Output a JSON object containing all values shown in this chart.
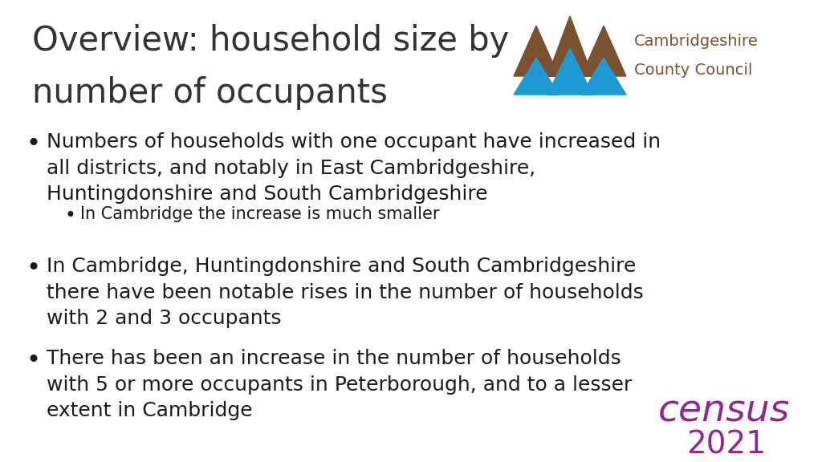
{
  "title_line1": "Overview: household size by",
  "title_line2": "number of occupants",
  "title_fontsize": 30,
  "title_color": "#333333",
  "background_color": "#ffffff",
  "bullet_color": "#1a1a1a",
  "bullet_fontsize": 18,
  "sub_bullet_fontsize": 15,
  "bullets": [
    {
      "text": "Numbers of households with one occupant have increased in\nall districts, and notably in East Cambridgeshire,\nHuntingdonshire and South Cambridgeshire",
      "sub": [
        "In Cambridge the increase is much smaller"
      ]
    },
    {
      "text": "In Cambridge, Huntingdonshire and South Cambridgeshire\nthere have been notable rises in the number of households\nwith 2 and 3 occupants",
      "sub": []
    },
    {
      "text": "There has been an increase in the number of households\nwith 5 or more occupants in Peterborough, and to a lesser\nextent in Cambridge",
      "sub": []
    }
  ],
  "census_color": "#8b2b8b",
  "logo_hill_color": "#7a5230",
  "logo_wave_color": "#1b9bd1",
  "logo_text_color": "#7a5230",
  "logo_text1": "Cambridgeshire",
  "logo_text2": "County Council"
}
